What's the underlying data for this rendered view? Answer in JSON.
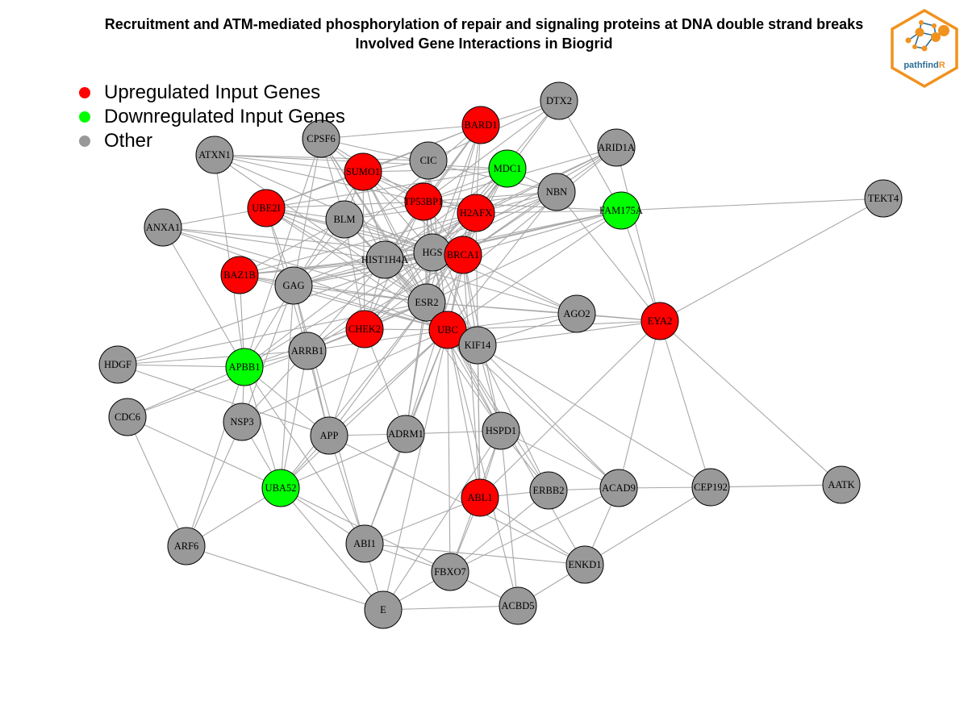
{
  "title": {
    "line1": "Recruitment and ATM-mediated phosphorylation of repair and signaling proteins at DNA double strand breaks",
    "line2": "Involved Gene Interactions in Biogrid"
  },
  "legend": [
    {
      "label": "Upregulated Input Genes",
      "color": "#ff0000"
    },
    {
      "label": "Downregulated Input Genes",
      "color": "#00ff00"
    },
    {
      "label": "Other",
      "color": "#999999"
    }
  ],
  "logo": {
    "text_main": "pathfind",
    "text_accent": "R"
  },
  "colors": {
    "up": "#ff0000",
    "down": "#00ff00",
    "other": "#999999",
    "edge": "#a8a8a8"
  },
  "nodes": [
    {
      "id": "DTX2",
      "type": "other"
    },
    {
      "id": "BARD1",
      "type": "up"
    },
    {
      "id": "CPSF6",
      "type": "other"
    },
    {
      "id": "ARID1A",
      "type": "other"
    },
    {
      "id": "ATXN1",
      "type": "other"
    },
    {
      "id": "CIC",
      "type": "other"
    },
    {
      "id": "MDC1",
      "type": "down"
    },
    {
      "id": "SUMO1",
      "type": "up"
    },
    {
      "id": "NBN",
      "type": "other"
    },
    {
      "id": "TEKT4",
      "type": "other"
    },
    {
      "id": "UBE2I",
      "type": "up"
    },
    {
      "id": "TP53BP1",
      "type": "up"
    },
    {
      "id": "H2AFX",
      "type": "up"
    },
    {
      "id": "FAM175A",
      "type": "down"
    },
    {
      "id": "BLM",
      "type": "other"
    },
    {
      "id": "ANXA1",
      "type": "other"
    },
    {
      "id": "HGS",
      "type": "other"
    },
    {
      "id": "BRCA1",
      "type": "up"
    },
    {
      "id": "HIST1H4A",
      "type": "other"
    },
    {
      "id": "BAZ1B",
      "type": "up"
    },
    {
      "id": "GAG",
      "type": "other"
    },
    {
      "id": "ESR2",
      "type": "other"
    },
    {
      "id": "AGO2",
      "type": "other"
    },
    {
      "id": "EYA2",
      "type": "up"
    },
    {
      "id": "CHEK2",
      "type": "up"
    },
    {
      "id": "UBC",
      "type": "up"
    },
    {
      "id": "KIF14",
      "type": "other"
    },
    {
      "id": "ARRB1",
      "type": "other"
    },
    {
      "id": "HDGF",
      "type": "other"
    },
    {
      "id": "APBB1",
      "type": "down"
    },
    {
      "id": "CDC6",
      "type": "other"
    },
    {
      "id": "NSP3",
      "type": "other"
    },
    {
      "id": "APP",
      "type": "other"
    },
    {
      "id": "ADRM1",
      "type": "other"
    },
    {
      "id": "HSPD1",
      "type": "other"
    },
    {
      "id": "UBA52",
      "type": "down"
    },
    {
      "id": "ABL1",
      "type": "up"
    },
    {
      "id": "ERBB2",
      "type": "other"
    },
    {
      "id": "ACAD9",
      "type": "other"
    },
    {
      "id": "CEP192",
      "type": "other"
    },
    {
      "id": "AATK",
      "type": "other"
    },
    {
      "id": "ARF6",
      "type": "other"
    },
    {
      "id": "ABI1",
      "type": "other"
    },
    {
      "id": "ENKD1",
      "type": "other"
    },
    {
      "id": "FBXO7",
      "type": "other"
    },
    {
      "id": "E",
      "type": "other"
    },
    {
      "id": "ACBD5",
      "type": "other"
    }
  ],
  "edges": [
    [
      "DTX2",
      "BARD1"
    ],
    [
      "DTX2",
      "TP53BP1"
    ],
    [
      "DTX2",
      "H2AFX"
    ],
    [
      "DTX2",
      "HGS"
    ],
    [
      "DTX2",
      "FAM175A"
    ],
    [
      "DTX2",
      "CIC"
    ],
    [
      "BARD1",
      "CPSF6"
    ],
    [
      "BARD1",
      "SUMO1"
    ],
    [
      "BARD1",
      "TP53BP1"
    ],
    [
      "BARD1",
      "H2AFX"
    ],
    [
      "BARD1",
      "HGS"
    ],
    [
      "BARD1",
      "HIST1H4A"
    ],
    [
      "BARD1",
      "ESR2"
    ],
    [
      "BARD1",
      "UBE2I"
    ],
    [
      "BARD1",
      "GAG"
    ],
    [
      "BARD1",
      "BRCA1"
    ],
    [
      "CPSF6",
      "SUMO1"
    ],
    [
      "CPSF6",
      "TP53BP1"
    ],
    [
      "CPSF6",
      "HIST1H4A"
    ],
    [
      "CPSF6",
      "ESR2"
    ],
    [
      "CPSF6",
      "BLM"
    ],
    [
      "CPSF6",
      "GAG"
    ],
    [
      "CPSF6",
      "APBB1"
    ],
    [
      "CPSF6",
      "UBC"
    ],
    [
      "CPSF6",
      "NBN"
    ],
    [
      "ARID1A",
      "HGS"
    ],
    [
      "ARID1A",
      "H2AFX"
    ],
    [
      "ARID1A",
      "TP53BP1"
    ],
    [
      "ARID1A",
      "EYA2"
    ],
    [
      "ARID1A",
      "ESR2"
    ],
    [
      "ARID1A",
      "BRCA1"
    ],
    [
      "ARID1A",
      "HIST1H4A"
    ],
    [
      "ATXN1",
      "SUMO1"
    ],
    [
      "ATXN1",
      "TP53BP1"
    ],
    [
      "ATXN1",
      "HGS"
    ],
    [
      "ATXN1",
      "APBB1"
    ],
    [
      "ATXN1",
      "MDC1"
    ],
    [
      "ATXN1",
      "ESR2"
    ],
    [
      "CIC",
      "SUMO1"
    ],
    [
      "CIC",
      "TP53BP1"
    ],
    [
      "CIC",
      "HGS"
    ],
    [
      "CIC",
      "ESR2"
    ],
    [
      "CIC",
      "UBC"
    ],
    [
      "CIC",
      "ATXN1"
    ],
    [
      "MDC1",
      "TP53BP1"
    ],
    [
      "MDC1",
      "H2AFX"
    ],
    [
      "MDC1",
      "HGS"
    ],
    [
      "MDC1",
      "NBN"
    ],
    [
      "MDC1",
      "HIST1H4A"
    ],
    [
      "MDC1",
      "CHEK2"
    ],
    [
      "MDC1",
      "UBE2I"
    ],
    [
      "MDC1",
      "BRCA1"
    ],
    [
      "MDC1",
      "ESR2"
    ],
    [
      "SUMO1",
      "UBE2I"
    ],
    [
      "SUMO1",
      "TP53BP1"
    ],
    [
      "SUMO1",
      "H2AFX"
    ],
    [
      "SUMO1",
      "HGS"
    ],
    [
      "SUMO1",
      "BRCA1"
    ],
    [
      "SUMO1",
      "BLM"
    ],
    [
      "SUMO1",
      "HIST1H4A"
    ],
    [
      "SUMO1",
      "ESR2"
    ],
    [
      "SUMO1",
      "UBC"
    ],
    [
      "SUMO1",
      "GAG"
    ],
    [
      "SUMO1",
      "CHEK2"
    ],
    [
      "SUMO1",
      "MDC1"
    ],
    [
      "NBN",
      "TP53BP1"
    ],
    [
      "NBN",
      "H2AFX"
    ],
    [
      "NBN",
      "BRCA1"
    ],
    [
      "NBN",
      "HGS"
    ],
    [
      "NBN",
      "BLM"
    ],
    [
      "NBN",
      "HIST1H4A"
    ],
    [
      "NBN",
      "EYA2"
    ],
    [
      "NBN",
      "UBC"
    ],
    [
      "TEKT4",
      "FAM175A"
    ],
    [
      "TEKT4",
      "EYA2"
    ],
    [
      "UBE2I",
      "TP53BP1"
    ],
    [
      "UBE2I",
      "HGS"
    ],
    [
      "UBE2I",
      "HIST1H4A"
    ],
    [
      "UBE2I",
      "ESR2"
    ],
    [
      "UBE2I",
      "BRCA1"
    ],
    [
      "UBE2I",
      "GAG"
    ],
    [
      "UBE2I",
      "UBC"
    ],
    [
      "UBE2I",
      "BLM"
    ],
    [
      "UBE2I",
      "ARRB1"
    ],
    [
      "UBE2I",
      "ANXA1"
    ],
    [
      "TP53BP1",
      "H2AFX"
    ],
    [
      "TP53BP1",
      "HGS"
    ],
    [
      "TP53BP1",
      "BRCA1"
    ],
    [
      "TP53BP1",
      "HIST1H4A"
    ],
    [
      "TP53BP1",
      "ESR2"
    ],
    [
      "TP53BP1",
      "UBC"
    ],
    [
      "TP53BP1",
      "BLM"
    ],
    [
      "TP53BP1",
      "CHEK2"
    ],
    [
      "TP53BP1",
      "KIF14"
    ],
    [
      "TP53BP1",
      "FAM175A"
    ],
    [
      "H2AFX",
      "HGS"
    ],
    [
      "H2AFX",
      "BRCA1"
    ],
    [
      "H2AFX",
      "HIST1H4A"
    ],
    [
      "H2AFX",
      "ESR2"
    ],
    [
      "H2AFX",
      "UBC"
    ],
    [
      "H2AFX",
      "FAM175A"
    ],
    [
      "H2AFX",
      "CHEK2"
    ],
    [
      "H2AFX",
      "BAZ1B"
    ],
    [
      "H2AFX",
      "ABL1"
    ],
    [
      "H2AFX",
      "GAG"
    ],
    [
      "FAM175A",
      "BRCA1"
    ],
    [
      "FAM175A",
      "HGS"
    ],
    [
      "FAM175A",
      "HIST1H4A"
    ],
    [
      "FAM175A",
      "EYA2"
    ],
    [
      "FAM175A",
      "UBC"
    ],
    [
      "FAM175A",
      "ESR2"
    ],
    [
      "FAM175A",
      "GAG"
    ],
    [
      "BLM",
      "HGS"
    ],
    [
      "BLM",
      "BRCA1"
    ],
    [
      "BLM",
      "HIST1H4A"
    ],
    [
      "BLM",
      "UBC"
    ],
    [
      "BLM",
      "ESR2"
    ],
    [
      "BLM",
      "CHEK2"
    ],
    [
      "BLM",
      "GAG"
    ],
    [
      "BLM",
      "BAZ1B"
    ],
    [
      "ANXA1",
      "HGS"
    ],
    [
      "ANXA1",
      "ESR2"
    ],
    [
      "ANXA1",
      "APBB1"
    ],
    [
      "ANXA1",
      "UBC"
    ],
    [
      "ANXA1",
      "HIST1H4A"
    ],
    [
      "HGS",
      "BRCA1"
    ],
    [
      "HGS",
      "HIST1H4A"
    ],
    [
      "HGS",
      "ESR2"
    ],
    [
      "HGS",
      "UBC"
    ],
    [
      "HGS",
      "GAG"
    ],
    [
      "HGS",
      "KIF14"
    ],
    [
      "HGS",
      "BAZ1B"
    ],
    [
      "HGS",
      "AGO2"
    ],
    [
      "HGS",
      "ARRB1"
    ],
    [
      "HGS",
      "APBB1"
    ],
    [
      "HGS",
      "HDGF"
    ],
    [
      "HGS",
      "ADRM1"
    ],
    [
      "BRCA1",
      "HIST1H4A"
    ],
    [
      "BRCA1",
      "ESR2"
    ],
    [
      "BRCA1",
      "UBC"
    ],
    [
      "BRCA1",
      "CHEK2"
    ],
    [
      "BRCA1",
      "AGO2"
    ],
    [
      "BRCA1",
      "BAZ1B"
    ],
    [
      "BRCA1",
      "KIF14"
    ],
    [
      "BRCA1",
      "ARRB1"
    ],
    [
      "BRCA1",
      "ABL1"
    ],
    [
      "BRCA1",
      "GAG"
    ],
    [
      "BRCA1",
      "HSPD1"
    ],
    [
      "BRCA1",
      "ADRM1"
    ],
    [
      "HIST1H4A",
      "ESR2"
    ],
    [
      "HIST1H4A",
      "UBC"
    ],
    [
      "HIST1H4A",
      "BAZ1B"
    ],
    [
      "HIST1H4A",
      "GAG"
    ],
    [
      "HIST1H4A",
      "CHEK2"
    ],
    [
      "HIST1H4A",
      "APBB1"
    ],
    [
      "HIST1H4A",
      "ARRB1"
    ],
    [
      "HIST1H4A",
      "KIF14"
    ],
    [
      "HIST1H4A",
      "AGO2"
    ],
    [
      "HIST1H4A",
      "HSPD1"
    ],
    [
      "BAZ1B",
      "GAG"
    ],
    [
      "BAZ1B",
      "ESR2"
    ],
    [
      "BAZ1B",
      "APBB1"
    ],
    [
      "BAZ1B",
      "UBC"
    ],
    [
      "GAG",
      "ESR2"
    ],
    [
      "GAG",
      "UBC"
    ],
    [
      "GAG",
      "APBB1"
    ],
    [
      "GAG",
      "NSP3"
    ],
    [
      "GAG",
      "ABI1"
    ],
    [
      "GAG",
      "UBA52"
    ],
    [
      "GAG",
      "APP"
    ],
    [
      "ESR2",
      "UBC"
    ],
    [
      "ESR2",
      "AGO2"
    ],
    [
      "ESR2",
      "EYA2"
    ],
    [
      "ESR2",
      "CHEK2"
    ],
    [
      "ESR2",
      "KIF14"
    ],
    [
      "ESR2",
      "ADRM1"
    ],
    [
      "ESR2",
      "HSPD1"
    ],
    [
      "ESR2",
      "APP"
    ],
    [
      "ESR2",
      "ARRB1"
    ],
    [
      "ESR2",
      "UBA52"
    ],
    [
      "AGO2",
      "UBC"
    ],
    [
      "AGO2",
      "EYA2"
    ],
    [
      "AGO2",
      "KIF14"
    ],
    [
      "EYA2",
      "UBC"
    ],
    [
      "EYA2",
      "ACAD9"
    ],
    [
      "EYA2",
      "CEP192"
    ],
    [
      "EYA2",
      "AATK"
    ],
    [
      "EYA2",
      "ABL1"
    ],
    [
      "EYA2",
      "KIF14"
    ],
    [
      "CHEK2",
      "UBC"
    ],
    [
      "CHEK2",
      "ARRB1"
    ],
    [
      "CHEK2",
      "ADRM1"
    ],
    [
      "CHEK2",
      "APP"
    ],
    [
      "UBC",
      "KIF14"
    ],
    [
      "UBC",
      "ADRM1"
    ],
    [
      "UBC",
      "HSPD1"
    ],
    [
      "UBC",
      "ABL1"
    ],
    [
      "UBC",
      "ERBB2"
    ],
    [
      "UBC",
      "FBXO7"
    ],
    [
      "UBC",
      "UBA52"
    ],
    [
      "UBC",
      "NSP3"
    ],
    [
      "UBC",
      "APP"
    ],
    [
      "UBC",
      "ABI1"
    ],
    [
      "UBC",
      "ARRB1"
    ],
    [
      "UBC",
      "ACAD9"
    ],
    [
      "UBC",
      "ENKD1"
    ],
    [
      "UBC",
      "ACBD5"
    ],
    [
      "UBC",
      "E"
    ],
    [
      "KIF14",
      "CEP192"
    ],
    [
      "KIF14",
      "ACAD9"
    ],
    [
      "KIF14",
      "HSPD1"
    ],
    [
      "KIF14",
      "ERBB2"
    ],
    [
      "KIF14",
      "ABL1"
    ],
    [
      "ARRB1",
      "APBB1"
    ],
    [
      "ARRB1",
      "APP"
    ],
    [
      "ARRB1",
      "UBA52"
    ],
    [
      "ARRB1",
      "NSP3"
    ],
    [
      "ARRB1",
      "HDGF"
    ],
    [
      "ARRB1",
      "CDC6"
    ],
    [
      "HDGF",
      "ESR2"
    ],
    [
      "HDGF",
      "APBB1"
    ],
    [
      "HDGF",
      "APP"
    ],
    [
      "APBB1",
      "NSP3"
    ],
    [
      "APBB1",
      "UBA52"
    ],
    [
      "APBB1",
      "ABI1"
    ],
    [
      "APBB1",
      "APP"
    ],
    [
      "APBB1",
      "ARF6"
    ],
    [
      "APBB1",
      "ESR2"
    ],
    [
      "CDC6",
      "ARF6"
    ],
    [
      "CDC6",
      "UBA52"
    ],
    [
      "CDC6",
      "APBB1"
    ],
    [
      "NSP3",
      "UBA52"
    ],
    [
      "NSP3",
      "ARF6"
    ],
    [
      "APP",
      "ADRM1"
    ],
    [
      "APP",
      "UBA52"
    ],
    [
      "APP",
      "ENKD1"
    ],
    [
      "APP",
      "ABI1"
    ],
    [
      "ADRM1",
      "HSPD1"
    ],
    [
      "ADRM1",
      "UBA52"
    ],
    [
      "ADRM1",
      "ABI1"
    ],
    [
      "HSPD1",
      "ABL1"
    ],
    [
      "HSPD1",
      "ERBB2"
    ],
    [
      "HSPD1",
      "ACAD9"
    ],
    [
      "HSPD1",
      "ACBD5"
    ],
    [
      "HSPD1",
      "FBXO7"
    ],
    [
      "HSPD1",
      "E"
    ],
    [
      "UBA52",
      "ABI1"
    ],
    [
      "UBA52",
      "E"
    ],
    [
      "UBA52",
      "ARF6"
    ],
    [
      "UBA52",
      "FBXO7"
    ],
    [
      "ABL1",
      "ENKD1"
    ],
    [
      "ABL1",
      "FBXO7"
    ],
    [
      "ABL1",
      "ABI1"
    ],
    [
      "ABL1",
      "ERBB2"
    ],
    [
      "ERBB2",
      "ACAD9"
    ],
    [
      "ERBB2",
      "FBXO7"
    ],
    [
      "ACAD9",
      "CEP192"
    ],
    [
      "ACAD9",
      "ENKD1"
    ],
    [
      "ACAD9",
      "FBXO7"
    ],
    [
      "CEP192",
      "AATK"
    ],
    [
      "CEP192",
      "ENKD1"
    ],
    [
      "ARF6",
      "E"
    ],
    [
      "ABI1",
      "E"
    ],
    [
      "ABI1",
      "FBXO7"
    ],
    [
      "ABI1",
      "ENKD1"
    ],
    [
      "FBXO7",
      "E"
    ],
    [
      "FBXO7",
      "ACBD5"
    ],
    [
      "E",
      "ACBD5"
    ],
    [
      "ENKD1",
      "ACBD5"
    ]
  ]
}
